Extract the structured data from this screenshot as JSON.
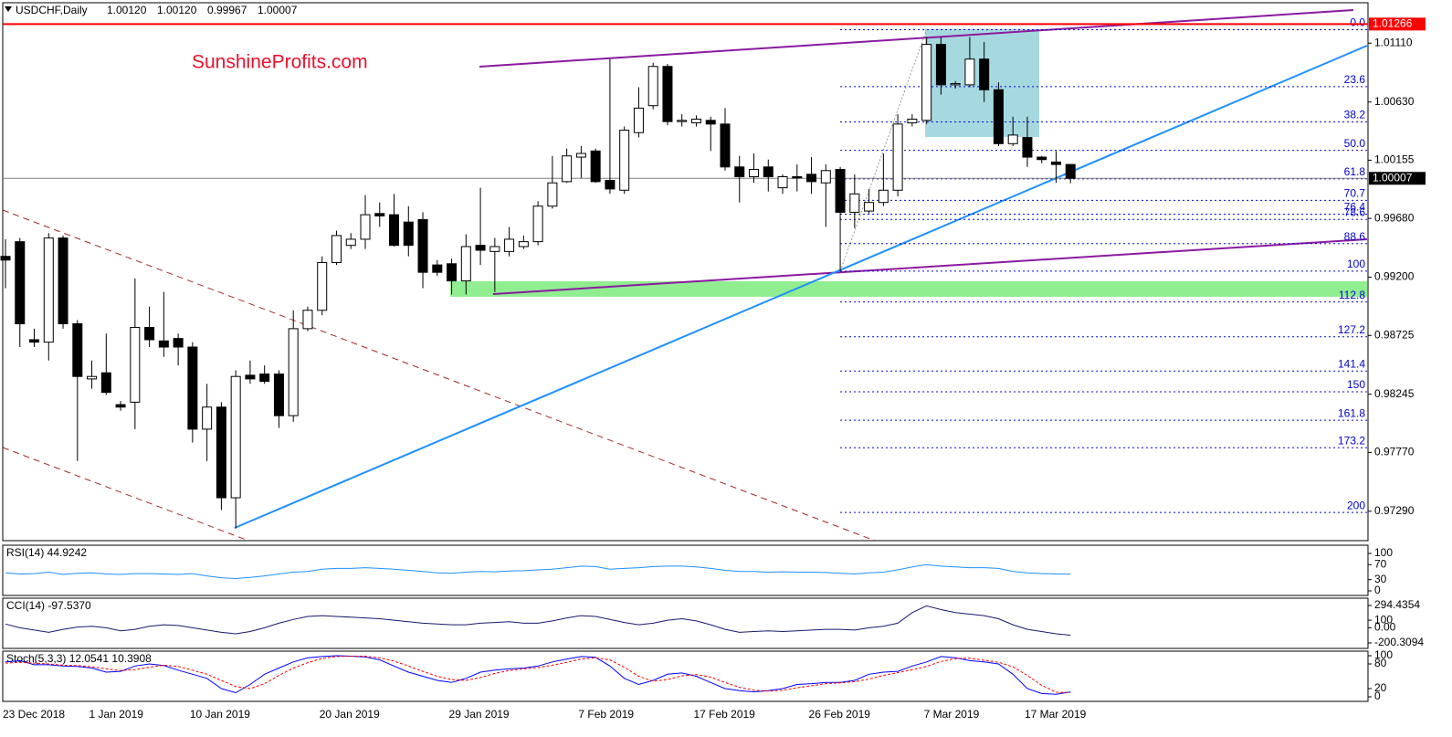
{
  "header": {
    "symbol": "USDCHF,Daily",
    "ohlc": [
      "1.00120",
      "1.00120",
      "0.99967",
      "1.00007"
    ]
  },
  "watermark": "SunshineProfits.com",
  "chart_data": [
    {
      "type": "candlestick",
      "categories": [
        "23 Dec 2018",
        null,
        null,
        null,
        null,
        null,
        "1 Jan 2019",
        null,
        null,
        null,
        null,
        null,
        null,
        "10 Jan 2019",
        null,
        null,
        null,
        null,
        null,
        null,
        null,
        null,
        "20 Jan 2019",
        null,
        null,
        null,
        null,
        null,
        null,
        null,
        null,
        "29 Jan 2019",
        null,
        null,
        null,
        null,
        null,
        null,
        null,
        null,
        "7 Feb 2019",
        null,
        null,
        null,
        null,
        null,
        null,
        null,
        "17 Feb 2019",
        null,
        null,
        null,
        null,
        null,
        null,
        null,
        "26 Feb 2019",
        null,
        null,
        null,
        null,
        null,
        null,
        null,
        "7 Mar 2019",
        null,
        null,
        null,
        null,
        null,
        null,
        "17 Mar 2019",
        null,
        null,
        null
      ],
      "open": [
        0.9937,
        0.9949,
        0.9869,
        0.9867,
        0.9952,
        0.9882,
        0.9837,
        0.9842,
        0.9816,
        0.9818,
        0.9879,
        0.9868,
        0.987,
        0.9863,
        0.9796,
        0.9814,
        0.974,
        0.984,
        0.9841,
        0.9841,
        0.9807,
        0.9878,
        0.9893,
        0.9932,
        0.9946,
        0.9951,
        0.9972,
        0.9971,
        0.9965,
        0.9967,
        0.993,
        0.9931,
        0.9917,
        0.9946,
        0.9941,
        0.9941,
        0.9945,
        0.9949,
        0.9978,
        0.9998,
        1.0018,
        1.0023,
        0.9999,
        0.9991,
        1.0038,
        1.006,
        1.0092,
        1.0047,
        1.0046,
        1.0048,
        1.0045,
        1.001,
        1.0002,
        1.001,
        0.9993,
        1.0002,
        1.0004,
        0.9997,
        1.0008,
        0.9973,
        0.9974,
        0.9981,
        0.9991,
        1.0046,
        1.0048,
        1.011,
        1.0077,
        1.0077,
        1.0098,
        1.0073,
        1.0029,
        1.0034,
        1.0018,
        1.0014,
        1.0012
      ],
      "high": [
        0.9951,
        0.9952,
        0.9878,
        0.9956,
        0.9954,
        0.9885,
        0.9852,
        0.9874,
        0.9819,
        0.9919,
        0.9896,
        0.9908,
        0.9874,
        0.9867,
        0.9833,
        0.9818,
        0.9844,
        0.9852,
        0.9848,
        0.9844,
        0.9893,
        0.9896,
        0.9937,
        0.9958,
        0.9956,
        0.9987,
        0.9981,
        0.9988,
        0.9978,
        0.9973,
        0.9934,
        0.9935,
        0.9955,
        0.9993,
        0.9952,
        0.9961,
        0.9954,
        0.9982,
        1.0019,
        1.0025,
        1.0027,
        1.0025,
        1.0098,
        1.0043,
        1.0075,
        1.0095,
        1.0094,
        1.0053,
        1.0052,
        1.0051,
        1.0058,
        1.0019,
        1.0021,
        1.0016,
        1.0004,
        1.0012,
        1.0018,
        1.0012,
        1.001,
        1.0004,
        0.9992,
        1.0021,
        1.0053,
        1.0053,
        1.0116,
        1.0116,
        1.008,
        1.0116,
        1.0112,
        1.0079,
        1.0051,
        1.0051,
        1.0019,
        1.0023,
        1.0012
      ],
      "low": [
        0.9911,
        0.9863,
        0.9863,
        0.9852,
        0.9878,
        0.977,
        0.9829,
        0.9824,
        0.9811,
        0.9796,
        0.9863,
        0.9855,
        0.9848,
        0.9785,
        0.977,
        0.973,
        0.9715,
        0.9833,
        0.9833,
        0.9797,
        0.9802,
        0.9876,
        0.9889,
        0.993,
        0.9943,
        0.9943,
        0.9961,
        0.9945,
        0.9937,
        0.9911,
        0.9921,
        0.9906,
        0.9906,
        0.993,
        0.9908,
        0.9937,
        0.9943,
        0.9946,
        0.9976,
        0.9997,
        1.0001,
        0.9997,
        0.9988,
        0.9988,
        1.0034,
        1.0057,
        1.0044,
        1.0043,
        1.0043,
        1.0023,
        1.0007,
        0.9981,
        0.9997,
        0.999,
        0.9988,
        0.999,
        0.9988,
        0.9961,
        0.9925,
        0.996,
        0.9972,
        0.9978,
        0.9986,
        1.0043,
        1.0045,
        1.0069,
        1.0074,
        1.0075,
        1.0063,
        1.0027,
        1.0027,
        1.001,
        1.0013,
        0.9997,
        0.99967
      ],
      "close": [
        0.9934,
        0.9882,
        0.9867,
        0.9952,
        0.9882,
        0.9839,
        0.9839,
        0.9826,
        0.9814,
        0.9879,
        0.9869,
        0.9863,
        0.9863,
        0.9796,
        0.9814,
        0.974,
        0.9839,
        0.9837,
        0.9835,
        0.9807,
        0.9878,
        0.9893,
        0.9932,
        0.9954,
        0.9951,
        0.9971,
        0.997,
        0.9946,
        0.9946,
        0.9924,
        0.9924,
        0.9917,
        0.9945,
        0.9942,
        0.9945,
        0.9951,
        0.9949,
        0.9978,
        0.9997,
        1.0019,
        1.0021,
        0.9998,
        0.9992,
        1.004,
        1.0058,
        1.0092,
        1.0047,
        1.0048,
        1.0049,
        1.0045,
        1.001,
        1.0002,
        1.0008,
        1.0002,
        1.0002,
        1.0001,
        0.9998,
        1.0007,
        0.9973,
        0.9988,
        0.9981,
        0.9991,
        1.0045,
        1.0049,
        1.011,
        1.0077,
        1.0078,
        1.0098,
        1.0073,
        1.0029,
        1.0036,
        1.0018,
        1.0016,
        1.0012,
        1.00007
      ],
      "ylim": [
        0.9705,
        1.0144
      ],
      "yticks": [
        {
          "value": 1.0111,
          "label": "1.01110"
        },
        {
          "value": 1.0063,
          "label": "1.00630"
        },
        1.00155,
        {
          "value": 0.9968,
          "label": "0.99680"
        },
        {
          "value": 0.992,
          "label": "0.99200"
        },
        0.98725,
        0.98245,
        {
          "value": 0.9777,
          "label": "0.97770"
        },
        {
          "value": 0.9729,
          "label": "0.97290"
        }
      ],
      "price_lines": [
        {
          "value": 1.01266,
          "color": "#ff0000",
          "box": "#ff0000"
        },
        {
          "value": 1.00007,
          "color": "#808080",
          "box": "#000000"
        }
      ],
      "fib": {
        "from": 1.0122,
        "to": 0.9925,
        "color": "#0000cd",
        "levels": [
          {
            "value": 0,
            "label": "0.0"
          },
          23.6,
          38.2,
          {
            "value": 50,
            "label": "50.0"
          },
          61.8,
          70.7,
          76.4,
          78.6,
          88.6,
          100,
          112.8,
          127.2,
          141.4,
          150,
          161.8,
          173.2,
          200
        ]
      }
    },
    {
      "type": "line",
      "title": "RSI(14) 44.9242",
      "ylim": [
        0,
        100
      ],
      "yticks": [
        100,
        70,
        30,
        0
      ],
      "series": [
        {
          "color": "#1e90ff",
          "values": [
            48,
            45,
            46,
            50,
            44,
            47,
            48,
            45,
            44,
            46,
            46,
            45,
            44,
            46,
            40,
            35,
            33,
            36,
            40,
            45,
            50,
            52,
            58,
            60,
            60,
            62,
            60,
            58,
            55,
            52,
            48,
            47,
            50,
            52,
            51,
            53,
            54,
            56,
            58,
            62,
            66,
            65,
            58,
            60,
            62,
            65,
            66,
            66,
            64,
            60,
            55,
            52,
            52,
            50,
            51,
            50,
            50,
            49,
            47,
            45,
            48,
            50,
            56,
            64,
            70,
            66,
            64,
            62,
            62,
            60,
            52,
            48,
            46,
            45,
            44.9242
          ]
        }
      ]
    },
    {
      "type": "line",
      "title": "CCI(14) -97.5370",
      "ylim": [
        -200.3094,
        294.4354
      ],
      "yticks": [
        294.4354,
        100,
        {
          "value": 0,
          "label": "0.00"
        },
        -200.3094
      ],
      "series": [
        {
          "color": "#191970",
          "values": [
            50,
            0,
            -30,
            -60,
            -20,
            10,
            20,
            0,
            -40,
            -20,
            20,
            40,
            30,
            0,
            -30,
            -60,
            -80,
            -50,
            0,
            60,
            110,
            150,
            160,
            150,
            140,
            130,
            120,
            100,
            80,
            60,
            50,
            40,
            40,
            60,
            70,
            80,
            60,
            60,
            90,
            130,
            160,
            150,
            110,
            70,
            40,
            60,
            100,
            120,
            90,
            40,
            -20,
            -60,
            -50,
            -40,
            -50,
            -40,
            -30,
            -20,
            -20,
            -30,
            0,
            20,
            60,
            200,
            290,
            240,
            200,
            180,
            160,
            120,
            40,
            -20,
            -50,
            -80,
            -97.537
          ]
        }
      ]
    },
    {
      "type": "line",
      "title": "Stoch(5,3,3) 12.0541 10.3908",
      "ylim": [
        0,
        100
      ],
      "yticks": [
        100,
        80,
        20,
        0
      ],
      "series": [
        {
          "color": "#0000ff",
          "values": [
            85,
            88,
            78,
            78,
            75,
            74,
            70,
            60,
            62,
            75,
            80,
            76,
            65,
            55,
            45,
            20,
            10,
            30,
            55,
            70,
            85,
            95,
            98,
            100,
            99,
            97,
            90,
            75,
            60,
            50,
            40,
            35,
            45,
            60,
            65,
            68,
            70,
            75,
            85,
            92,
            98,
            96,
            75,
            45,
            30,
            40,
            55,
            58,
            50,
            35,
            20,
            15,
            12,
            15,
            20,
            30,
            32,
            35,
            35,
            40,
            55,
            60,
            62,
            75,
            85,
            98,
            95,
            88,
            85,
            80,
            55,
            20,
            8,
            6,
            12.0541
          ]
        },
        {
          "color": "#ff0000",
          "dashed": true,
          "values": [
            82,
            84,
            82,
            80,
            77,
            76,
            73,
            68,
            64,
            66,
            72,
            77,
            74,
            65,
            55,
            40,
            25,
            20,
            32,
            52,
            70,
            83,
            93,
            98,
            99,
            99,
            95,
            87,
            75,
            62,
            50,
            42,
            40,
            47,
            57,
            64,
            68,
            71,
            77,
            84,
            92,
            95,
            90,
            72,
            50,
            38,
            42,
            51,
            54,
            48,
            35,
            23,
            16,
            14,
            16,
            22,
            27,
            32,
            34,
            37,
            43,
            52,
            59,
            66,
            74,
            86,
            93,
            94,
            89,
            84,
            73,
            52,
            28,
            11,
            10.3908
          ]
        }
      ]
    }
  ]
}
